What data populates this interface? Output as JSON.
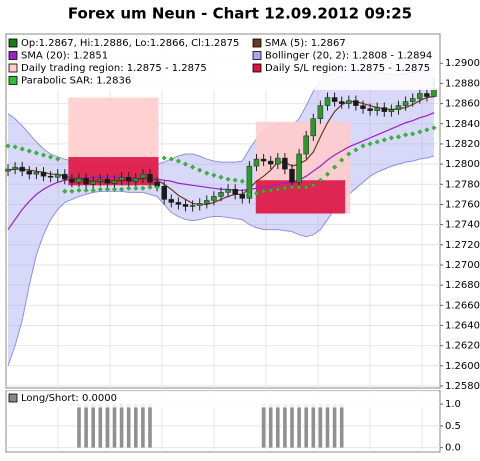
{
  "chart_data": [
    {
      "type": "candlestick",
      "title": "Forex um Neun - Chart 12.09.2012 09:25",
      "legend": [
        {
          "label": "Op:1.2867, Hi:1.2886, Lo:1.2866, Cl:1.2875",
          "color": "#1a7a1a"
        },
        {
          "label": "SMA (5): 1.2867",
          "color": "#6b3a1f"
        },
        {
          "label": "SMA (20): 1.2851",
          "color": "#9a20c8"
        },
        {
          "label": "Bollinger (20, 2): 1.2808 - 1.2894",
          "color": "#a8a8f0"
        },
        {
          "label": "Daily trading region: 1.2875 - 1.2875",
          "color": "#ffcccc"
        },
        {
          "label": "Daily S/L region: 1.2875 - 1.2875",
          "color": "#e0103a"
        },
        {
          "label": "Parabolic SAR: 1.2836",
          "color": "#30c030"
        }
      ],
      "up_color": "#2a9a2a",
      "down_color": "#1a1a1a",
      "open": [
        1.2793,
        1.2795,
        1.2797,
        1.2793,
        1.279,
        1.2792,
        1.2788,
        1.2787,
        1.279,
        1.2785,
        1.2782,
        1.2786,
        1.278,
        1.2783,
        1.2785,
        1.2781,
        1.2784,
        1.2787,
        1.2783,
        1.2786,
        1.279,
        1.2782,
        1.2778,
        1.2765,
        1.2762,
        1.276,
        1.2758,
        1.2759,
        1.2761,
        1.2764,
        1.2768,
        1.2772,
        1.2775,
        1.277,
        1.2766,
        1.2798,
        1.2805,
        1.2803,
        1.28,
        1.2806,
        1.2795,
        1.2782,
        1.281,
        1.2828,
        1.2845,
        1.2858,
        1.2866,
        1.2862,
        1.286,
        1.2863,
        1.2858,
        1.2855,
        1.2853,
        1.2856,
        1.2852,
        1.2854,
        1.2858,
        1.2862,
        1.2865,
        1.287,
        1.2867
      ],
      "high": [
        1.28,
        1.2802,
        1.2802,
        1.2798,
        1.2797,
        1.2797,
        1.2793,
        1.2795,
        1.2795,
        1.279,
        1.2791,
        1.2791,
        1.2788,
        1.279,
        1.279,
        1.2789,
        1.2792,
        1.2792,
        1.2791,
        1.2795,
        1.2795,
        1.2787,
        1.2783,
        1.277,
        1.2767,
        1.2765,
        1.2764,
        1.2766,
        1.2769,
        1.2773,
        1.2777,
        1.278,
        1.278,
        1.2775,
        1.2803,
        1.281,
        1.281,
        1.2808,
        1.2811,
        1.2811,
        1.28,
        1.2815,
        1.2833,
        1.285,
        1.2863,
        1.2871,
        1.2871,
        1.2867,
        1.2868,
        1.2868,
        1.2863,
        1.286,
        1.2861,
        1.2861,
        1.2859,
        1.2863,
        1.2867,
        1.287,
        1.2875,
        1.2875,
        1.2886
      ],
      "low": [
        1.2788,
        1.279,
        1.2788,
        1.2785,
        1.2785,
        1.2783,
        1.2782,
        1.2782,
        1.278,
        1.2777,
        1.2777,
        1.2775,
        1.2775,
        1.2778,
        1.2776,
        1.2776,
        1.2779,
        1.2778,
        1.2778,
        1.2781,
        1.2777,
        1.2773,
        1.276,
        1.2757,
        1.2755,
        1.2753,
        1.2753,
        1.2754,
        1.2756,
        1.2759,
        1.2763,
        1.2767,
        1.2765,
        1.2761,
        1.2761,
        1.2793,
        1.2798,
        1.2795,
        1.2795,
        1.279,
        1.2777,
        1.2777,
        1.2805,
        1.2823,
        1.284,
        1.2853,
        1.2857,
        1.2855,
        1.2855,
        1.2853,
        1.285,
        1.2848,
        1.2848,
        1.2847,
        1.2847,
        1.2849,
        1.2853,
        1.2857,
        1.286,
        1.2862,
        1.2866
      ],
      "close": [
        1.2795,
        1.2797,
        1.2793,
        1.279,
        1.2792,
        1.2788,
        1.2787,
        1.279,
        1.2785,
        1.2782,
        1.2786,
        1.278,
        1.2783,
        1.2785,
        1.2781,
        1.2784,
        1.2787,
        1.2783,
        1.2786,
        1.279,
        1.2782,
        1.2778,
        1.2765,
        1.2762,
        1.276,
        1.2758,
        1.2759,
        1.2761,
        1.2764,
        1.2768,
        1.2772,
        1.2775,
        1.277,
        1.2766,
        1.2798,
        1.2805,
        1.2803,
        1.28,
        1.2806,
        1.2795,
        1.2782,
        1.281,
        1.2828,
        1.2845,
        1.2858,
        1.2866,
        1.2862,
        1.286,
        1.2863,
        1.2858,
        1.2855,
        1.2853,
        1.2856,
        1.2852,
        1.2854,
        1.2858,
        1.2862,
        1.2865,
        1.287,
        1.2867,
        1.2875
      ],
      "sma5": {
        "color": "#6b3a1f",
        "values": [
          1.2794,
          1.2795,
          1.2795,
          1.2794,
          1.2793,
          1.2792,
          1.279,
          1.279,
          1.2788,
          1.2786,
          1.2786,
          1.2784,
          1.2783,
          1.2783,
          1.2782,
          1.2783,
          1.2784,
          1.2784,
          1.2784,
          1.2786,
          1.2786,
          1.2784,
          1.278,
          1.2775,
          1.2769,
          1.2765,
          1.2761,
          1.276,
          1.276,
          1.2762,
          1.2765,
          1.2768,
          1.277,
          1.277,
          1.2776,
          1.2783,
          1.2788,
          1.2794,
          1.2802,
          1.2802,
          1.2798,
          1.28,
          1.2804,
          1.2812,
          1.2827,
          1.2841,
          1.2852,
          1.2859,
          1.2862,
          1.2862,
          1.286,
          1.2858,
          1.2856,
          1.2855,
          1.2854,
          1.2855,
          1.2856,
          1.2859,
          1.2863,
          1.2866,
          1.2867
        ]
      },
      "sma20": {
        "color": "#9a20c8",
        "values": [
          1.2735,
          1.2745,
          1.2755,
          1.2763,
          1.277,
          1.2775,
          1.2779,
          1.2782,
          1.2784,
          1.2785,
          1.2786,
          1.2786,
          1.2787,
          1.2787,
          1.2787,
          1.2787,
          1.2786,
          1.2786,
          1.2786,
          1.2786,
          1.2785,
          1.2785,
          1.2784,
          1.2783,
          1.2781,
          1.278,
          1.2779,
          1.2778,
          1.2777,
          1.2776,
          1.2775,
          1.2775,
          1.2774,
          1.2774,
          1.2775,
          1.2776,
          1.2777,
          1.2778,
          1.278,
          1.2781,
          1.2781,
          1.2784,
          1.2788,
          1.2793,
          1.2798,
          1.2804,
          1.2809,
          1.2813,
          1.2817,
          1.282,
          1.2823,
          1.2826,
          1.2829,
          1.2832,
          1.2835,
          1.2838,
          1.2841,
          1.2843,
          1.2846,
          1.2848,
          1.2851
        ]
      },
      "bollinger": {
        "color": "#a8a8f0",
        "line_color": "#9090e0",
        "upper": [
          1.285,
          1.2845,
          1.2838,
          1.283,
          1.2822,
          1.2815,
          1.281,
          1.2807,
          1.2805,
          1.2803,
          1.2802,
          1.2801,
          1.28,
          1.28,
          1.28,
          1.28,
          1.28,
          1.28,
          1.28,
          1.28,
          1.28,
          1.28,
          1.2802,
          1.2805,
          1.2808,
          1.281,
          1.281,
          1.2808,
          1.2805,
          1.2803,
          1.2802,
          1.2802,
          1.2802,
          1.2803,
          1.2815,
          1.2825,
          1.2832,
          1.2836,
          1.284,
          1.284,
          1.2838,
          1.2845,
          1.2858,
          1.2872,
          1.2882,
          1.2888,
          1.289,
          1.2892,
          1.2893,
          1.2893,
          1.2893,
          1.2892,
          1.2891,
          1.289,
          1.2889,
          1.2889,
          1.289,
          1.2891,
          1.2892,
          1.2893,
          1.2894
        ],
        "lower": [
          1.26,
          1.262,
          1.2645,
          1.268,
          1.271,
          1.273,
          1.2745,
          1.2755,
          1.2762,
          1.2765,
          1.2768,
          1.277,
          1.2772,
          1.2773,
          1.2773,
          1.2773,
          1.2773,
          1.2772,
          1.2772,
          1.2772,
          1.277,
          1.2768,
          1.276,
          1.2752,
          1.2748,
          1.2745,
          1.2744,
          1.2745,
          1.2747,
          1.2748,
          1.2748,
          1.2747,
          1.2746,
          1.2745,
          1.274,
          1.2737,
          1.2735,
          1.2735,
          1.2735,
          1.2734,
          1.2733,
          1.273,
          1.2728,
          1.273,
          1.2735,
          1.2745,
          1.2755,
          1.2762,
          1.277,
          1.2776,
          1.2782,
          1.2788,
          1.2792,
          1.2795,
          1.2798,
          1.28,
          1.2802,
          1.2803,
          1.2805,
          1.2806,
          1.2808
        ]
      },
      "sar": {
        "color": "#30c030",
        "values": [
          1.2818,
          1.2817,
          1.2815,
          1.2813,
          1.2811,
          1.2809,
          1.2807,
          1.2805,
          1.2773,
          1.2773,
          1.2774,
          1.2774,
          1.2774,
          1.2775,
          1.2775,
          1.2775,
          1.2775,
          1.2776,
          1.2776,
          1.2776,
          1.2777,
          1.2777,
          1.2806,
          1.2805,
          1.2803,
          1.28,
          1.2797,
          1.2794,
          1.2791,
          1.2789,
          1.2787,
          1.2785,
          1.2784,
          1.2783,
          1.277,
          1.2771,
          1.2773,
          1.2774,
          1.2775,
          1.2776,
          1.2777,
          1.2777,
          1.2777,
          1.2779,
          1.2784,
          1.279,
          1.2797,
          1.2804,
          1.281,
          1.2814,
          1.2818,
          1.282,
          1.2822,
          1.2824,
          1.2826,
          1.2827,
          1.2829,
          1.283,
          1.2832,
          1.2834,
          1.2836
        ]
      },
      "regions": [
        {
          "color": "#ffcccc",
          "bands": [
            {
              "start": 8.5,
              "end": 21.2,
              "low": 1.2779,
              "high": 1.2866
            },
            {
              "start": 34.9,
              "end": 48.2,
              "low": 1.2751,
              "high": 1.2842
            }
          ]
        },
        {
          "color": "#dc1445",
          "bands": [
            {
              "start": 8.5,
              "end": 21.2,
              "low": 1.2779,
              "high": 1.2807
            },
            {
              "start": 34.9,
              "end": 47.5,
              "low": 1.2751,
              "high": 1.2784
            }
          ]
        }
      ],
      "ylim": [
        1.2578,
        1.2929
      ],
      "yticks": [
        {
          "value": 1.258,
          "label": "1.2580"
        },
        {
          "value": 1.26,
          "label": "1.2600"
        },
        {
          "value": 1.262,
          "label": "1.2620"
        },
        {
          "value": 1.264,
          "label": "1.2640"
        },
        {
          "value": 1.266,
          "label": "1.2660"
        },
        {
          "value": 1.268,
          "label": "1.2680"
        },
        {
          "value": 1.27,
          "label": "1.2700"
        },
        {
          "value": 1.272,
          "label": "1.2720"
        },
        {
          "value": 1.274,
          "label": "1.2740"
        },
        {
          "value": 1.276,
          "label": "1.2760"
        },
        {
          "value": 1.278,
          "label": "1.2780"
        },
        {
          "value": 1.28,
          "label": "1.2800"
        },
        {
          "value": 1.282,
          "label": "1.2820"
        },
        {
          "value": 1.284,
          "label": "1.2840"
        },
        {
          "value": 1.286,
          "label": "1.2860"
        },
        {
          "value": 1.288,
          "label": "1.2880"
        },
        {
          "value": 1.29,
          "label": "1.2900"
        }
      ],
      "grid": true
    },
    {
      "type": "bar",
      "legend": [
        {
          "label": "Long/Short: 0.0000",
          "color": "#888888"
        }
      ],
      "color": "#909090",
      "values": [
        0,
        0,
        0,
        0,
        0,
        0,
        0,
        0,
        0,
        0,
        1,
        1,
        1,
        1,
        1,
        1,
        1,
        1,
        1,
        1,
        1,
        0,
        0,
        0,
        0,
        0,
        0,
        0,
        0,
        0,
        0,
        0,
        0,
        0,
        0,
        0,
        1,
        1,
        1,
        1,
        1,
        1,
        1,
        1,
        1,
        1,
        1,
        1,
        0,
        0,
        0,
        0,
        0,
        0,
        0,
        0,
        0,
        0,
        0,
        0,
        0
      ],
      "ylim": [
        -0.1,
        1.3
      ],
      "yticks": [
        {
          "value": 0,
          "label": "0.0"
        },
        {
          "value": 0.5,
          "label": "0.5"
        },
        {
          "value": 1,
          "label": "1.0"
        }
      ],
      "grid": true
    }
  ]
}
